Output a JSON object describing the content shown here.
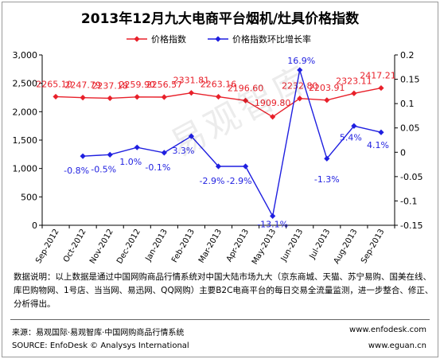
{
  "chart_data": {
    "type": "line",
    "title": "2013年12月九大电商平台烟机/灶具价格指数",
    "categories": [
      "Sep-2012",
      "Oct-2012",
      "Nov-2012",
      "Dec-2012",
      "Jan-2013",
      "Feb-2013",
      "Mar-2013",
      "Apr-2013",
      "May-2013",
      "Jun-2013",
      "Jul-2013",
      "Aug-2013",
      "Sep-2013"
    ],
    "series": [
      {
        "name": "价格指数",
        "axis": "left",
        "color": "#e8202a",
        "marker": "diamond",
        "values": [
          2265.1,
          2247.79,
          2237.18,
          2259.9,
          2256.57,
          2331.81,
          2263.16,
          2196.6,
          1909.8,
          2232.8,
          2203.91,
          2323.11,
          2417.21
        ],
        "labels": [
          "2265.10",
          "2247.79",
          "2237.18",
          "2259.90",
          "2256.57",
          "2331.81",
          "2263.16",
          "2196.60",
          "1909.80",
          "2232.80",
          "2203.91",
          "2323.11",
          "2417.21"
        ]
      },
      {
        "name": "价格指数环比增长率",
        "axis": "right",
        "color": "#1f1fe0",
        "marker": "diamond",
        "values": [
          null,
          -0.008,
          -0.005,
          0.01,
          -0.001,
          0.033,
          -0.029,
          -0.029,
          -0.131,
          0.169,
          -0.013,
          0.054,
          0.041
        ],
        "labels": [
          null,
          "-0.8%",
          "-0.5%",
          "1.0%",
          "-0.1%",
          "3.3%",
          "-2.9%",
          "-2.9%",
          "-13.1%",
          "16.9%",
          "-1.3%",
          "5.4%",
          "4.1%"
        ]
      }
    ],
    "y_left": {
      "min": 0,
      "max": 3000,
      "ticks": [
        "0",
        "500",
        "1,000",
        "1,500",
        "2,000",
        "2,500",
        "3,000"
      ]
    },
    "y_right": {
      "min": -0.15,
      "max": 0.2,
      "ticks": [
        "-0.15",
        "-0.1",
        "-0.05",
        "0",
        "0.05",
        "0.1",
        "0.15",
        "0.2"
      ]
    },
    "legend_position": "top-center",
    "grid": false
  },
  "note": "数据说明：以上数据是通过中国网购商品行情系统对中国大陆市场九大（京东商城、天猫、苏宁易购、国美在线、库巴购物网、1号店、当当网、易迅网、QQ网购）主要B2C电商平台的每日交易全流量监测，进一步整合、修正、分析得出。",
  "footer": {
    "source_cn": "来源：易观国际·易观智库·中国网购商品行情系统",
    "source_en": "SOURCE: EnfoDesk © Analysys International",
    "url1": "www.enfodesk.com",
    "url2": "www.eguan.cn"
  },
  "watermark": "易观智库"
}
